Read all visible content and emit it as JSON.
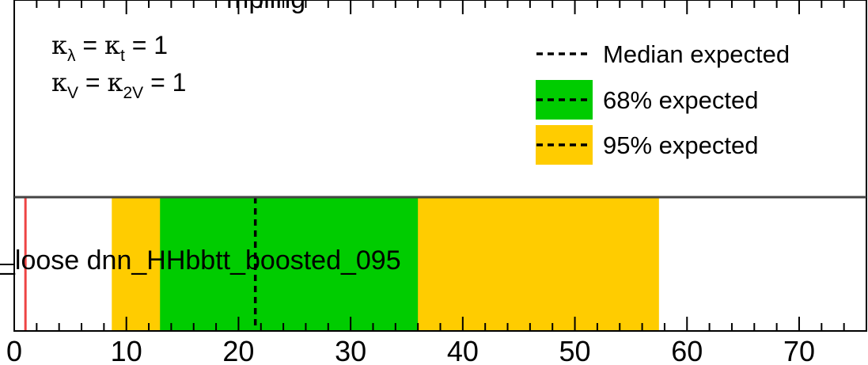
{
  "chart_data": {
    "type": "bar",
    "orientation": "horizontal",
    "categories": [
      "_loose dnn_HHbbtt_boosted_095"
    ],
    "x_range": [
      0,
      76
    ],
    "x_ticks": [
      0,
      10,
      20,
      30,
      40,
      50,
      60,
      70
    ],
    "theory_line": 1.0,
    "bands": {
      "median": 21.5,
      "expected_68": [
        13.0,
        36.0
      ],
      "expected_95": [
        8.7,
        57.5
      ]
    },
    "legend": {
      "position": "top-right",
      "entries": [
        {
          "label": "Median expected",
          "style": "dashed-line"
        },
        {
          "label": "68% expected",
          "style": "band"
        },
        {
          "label": "95% expected",
          "style": "band"
        }
      ]
    },
    "couplings": {
      "line1": {
        "k1": "κ",
        "s1": "λ",
        "eq1": " = ",
        "k2": "κ",
        "s2": "t",
        "eq2": " = 1"
      },
      "line2": {
        "k1": "κ",
        "s1": "V",
        "eq1": " = ",
        "k2": "κ",
        "s2": "2V",
        "eq2": " = 1"
      }
    },
    "title_partial": "mpling"
  },
  "colors": {
    "band_68": "#00cc00",
    "band_95": "#ffcc00",
    "theory_line": "#ee4444",
    "frame": "#000000"
  }
}
